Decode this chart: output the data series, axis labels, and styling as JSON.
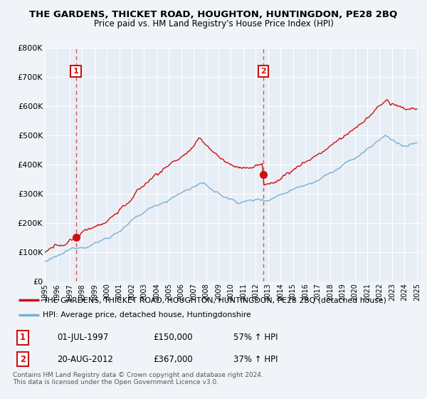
{
  "title": "THE GARDENS, THICKET ROAD, HOUGHTON, HUNTINGDON, PE28 2BQ",
  "subtitle": "Price paid vs. HM Land Registry's House Price Index (HPI)",
  "ylim": [
    0,
    800000
  ],
  "yticks": [
    0,
    100000,
    200000,
    300000,
    400000,
    500000,
    600000,
    700000,
    800000
  ],
  "ytick_labels": [
    "£0",
    "£100K",
    "£200K",
    "£300K",
    "£400K",
    "£500K",
    "£600K",
    "£700K",
    "£800K"
  ],
  "sale1_date": 1997.5,
  "sale1_price": 150000,
  "sale1_label": "1",
  "sale2_date": 2012.63,
  "sale2_price": 367000,
  "sale2_label": "2",
  "legend_line1": "THE GARDENS, THICKET ROAD, HOUGHTON, HUNTINGDON, PE28 2BQ (detached house)",
  "legend_line2": "HPI: Average price, detached house, Huntingdonshire",
  "table_row1": [
    "1",
    "01-JUL-1997",
    "£150,000",
    "57% ↑ HPI"
  ],
  "table_row2": [
    "2",
    "20-AUG-2012",
    "£367,000",
    "37% ↑ HPI"
  ],
  "footer": "Contains HM Land Registry data © Crown copyright and database right 2024.\nThis data is licensed under the Open Government Licence v3.0.",
  "hpi_line_color": "#7bafd4",
  "price_line_color": "#cc1111",
  "bg_color": "#f0f4f8",
  "plot_bg_color": "#e8eef5",
  "sale_marker_color": "#cc1111",
  "dashed_line_color": "#cc3333"
}
